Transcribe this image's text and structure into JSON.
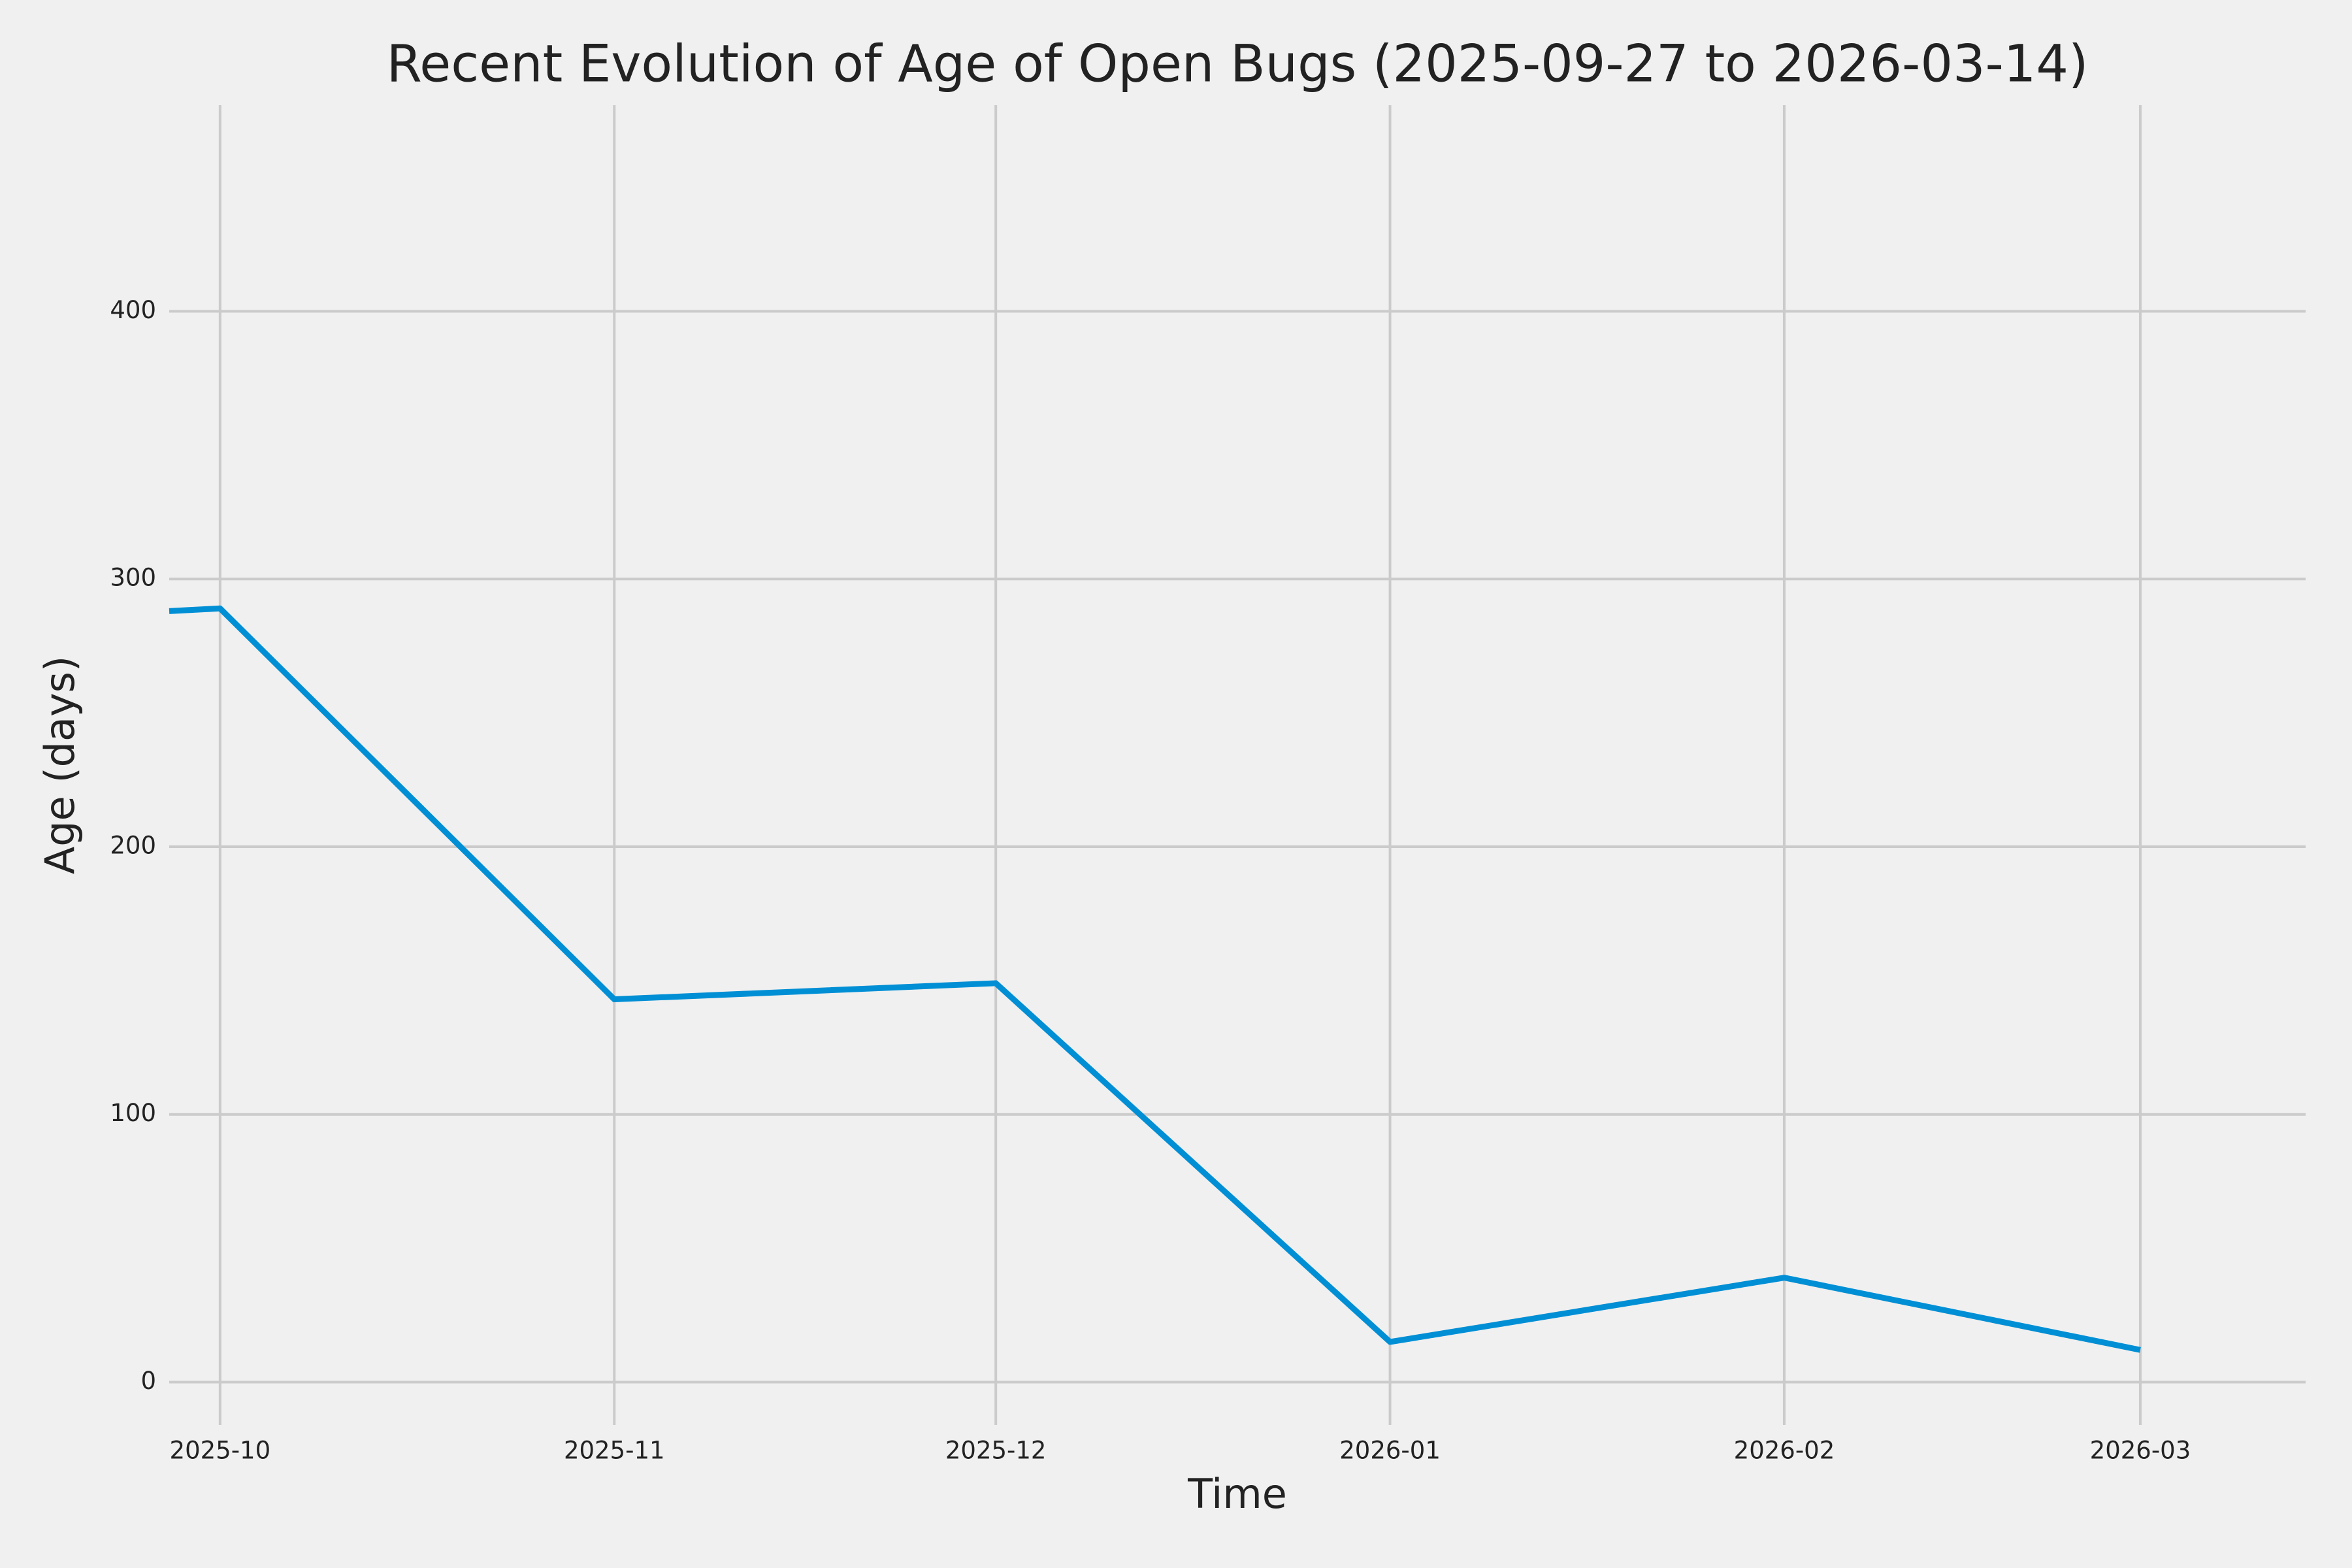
{
  "chart_data": {
    "type": "line",
    "title": "Recent Evolution of Age of Open Bugs (2025-09-27 to 2026-03-14)",
    "x_label": "Time",
    "y_label": "Age (days)",
    "x": [
      "2025-09-27",
      "2025-10-01",
      "2025-11-01",
      "2025-12-01",
      "2026-01-01",
      "2026-02-01",
      "2026-03-01"
    ],
    "series": [
      {
        "color": "#008fd5",
        "values": [
          288,
          289,
          143,
          149,
          15,
          39,
          12
        ]
      }
    ],
    "xlim": [
      "2025-09-27",
      "2026-03-14"
    ],
    "xticks": [
      {
        "value": "2025-10-01",
        "label": "2025-10"
      },
      {
        "value": "2025-11-01",
        "label": "2025-11"
      },
      {
        "value": "2025-12-01",
        "label": "2025-12"
      },
      {
        "value": "2026-01-01",
        "label": "2026-01"
      },
      {
        "value": "2026-02-01",
        "label": "2026-02"
      },
      {
        "value": "2026-03-01",
        "label": "2026-03"
      }
    ],
    "ylim": [
      -16,
      477
    ],
    "yticks": [
      0,
      100,
      200,
      300,
      400
    ],
    "grid": true
  }
}
